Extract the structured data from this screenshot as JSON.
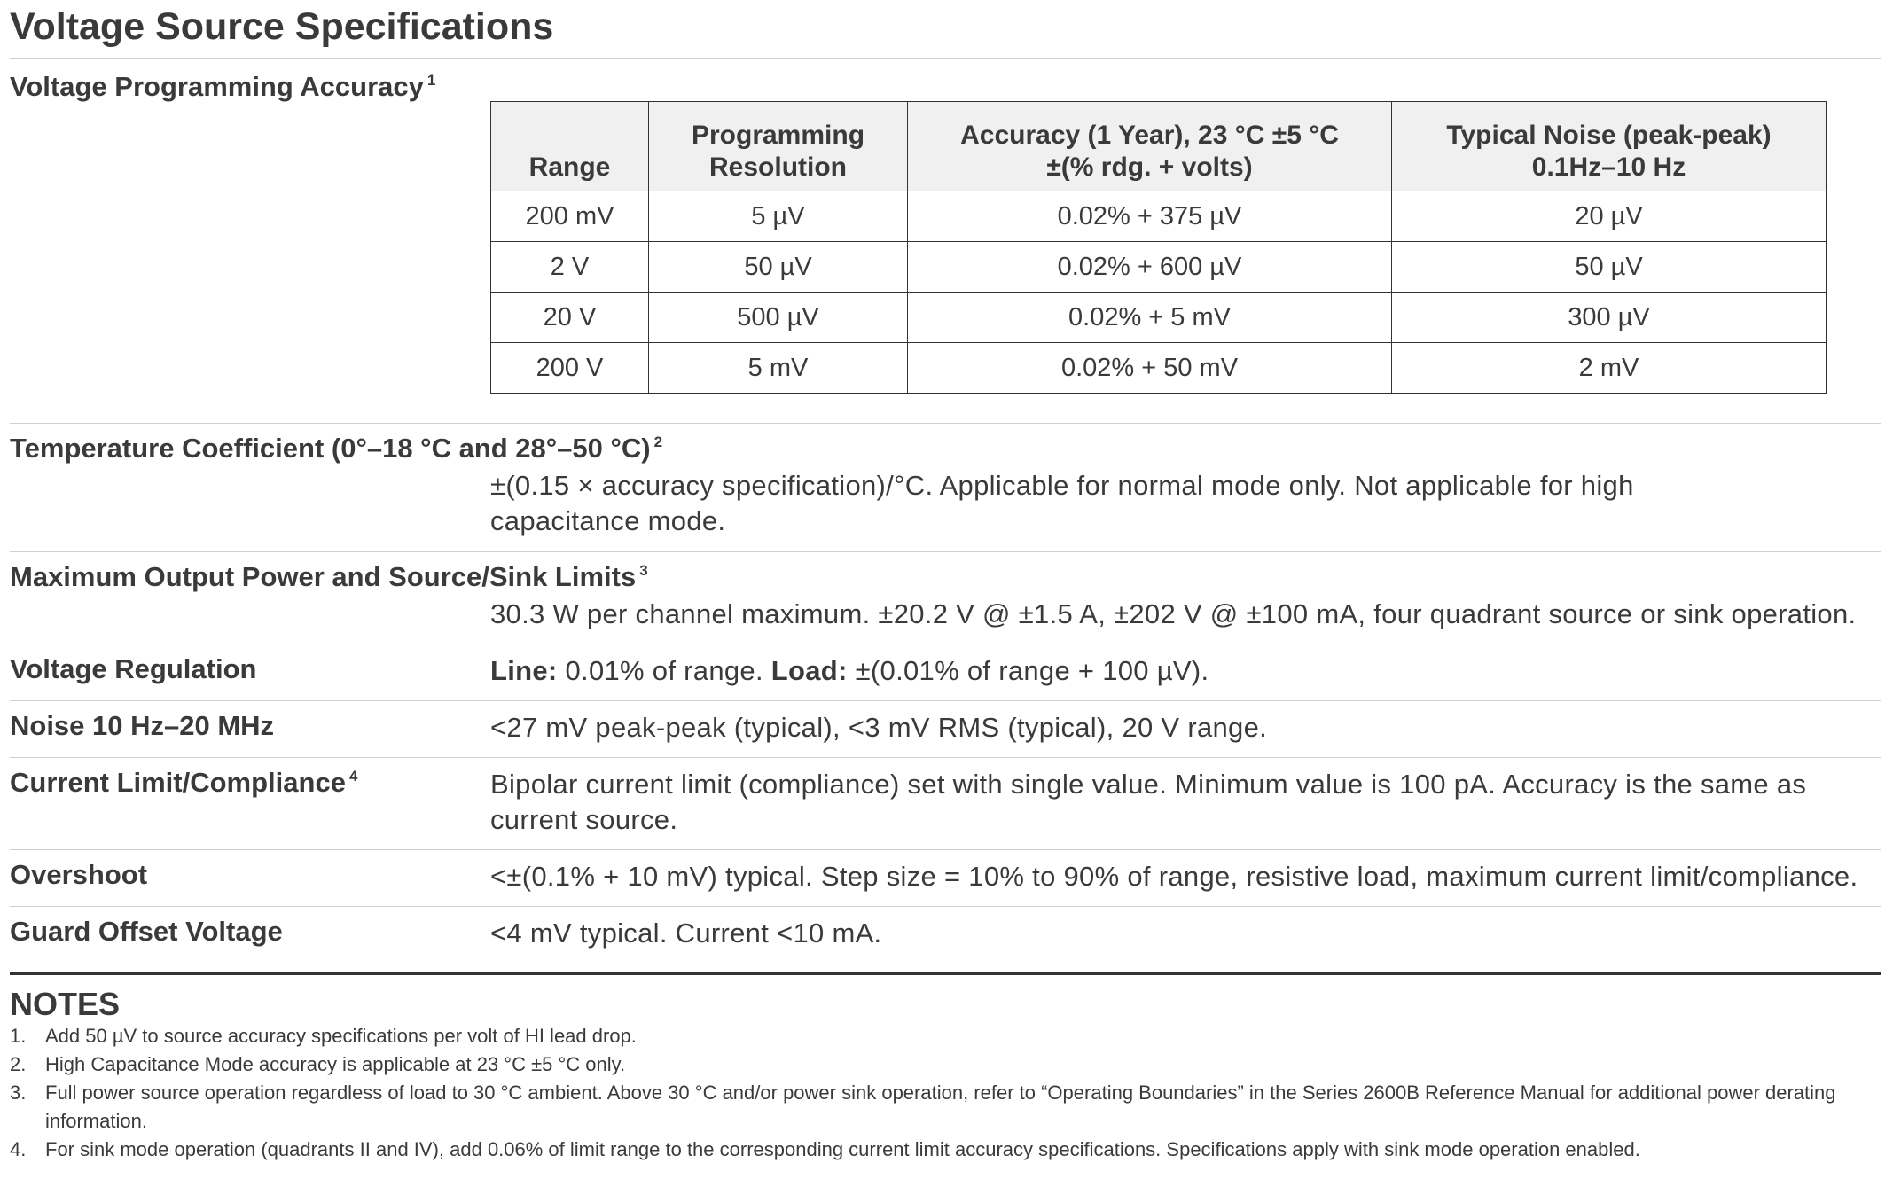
{
  "title": "Voltage Source Specifications",
  "accuracy": {
    "label": "Voltage Programming Accuracy",
    "note_ref": "1",
    "headers": {
      "range": "Range",
      "resolution_line1": "Programming",
      "resolution_line2": "Resolution",
      "accuracy_line1": "Accuracy (1 Year), 23 °C ±5 °C",
      "accuracy_line2": "±(% rdg. + volts)",
      "noise_line1": "Typical Noise (peak-peak)",
      "noise_line2": "0.1Hz–10 Hz"
    },
    "rows": [
      {
        "range": "200 mV",
        "resolution": "5 µV",
        "accuracy": "0.02% + 375 µV",
        "noise": "20 µV"
      },
      {
        "range": "2 V",
        "resolution": "50 µV",
        "accuracy": "0.02% + 600 µV",
        "noise": "50 µV"
      },
      {
        "range": "20 V",
        "resolution": "500 µV",
        "accuracy": "0.02% + 5 mV",
        "noise": "300 µV"
      },
      {
        "range": "200 V",
        "resolution": "5 mV",
        "accuracy": "0.02% + 50 mV",
        "noise": "2 mV"
      }
    ]
  },
  "specs": {
    "temp_coeff": {
      "label": "Temperature Coefficient (0°–18 °C and 28°–50 °C)",
      "note_ref": "2",
      "line1": "±(0.15 × accuracy specification)/°C. Applicable for normal mode only. Not applicable for high",
      "line2": "capacitance mode."
    },
    "max_power": {
      "label": "Maximum Output Power and Source/Sink Limits",
      "note_ref": "3",
      "value": "30.3 W per channel maximum. ±20.2 V @ ±1.5 A, ±202 V @ ±100 mA, four quadrant source or sink operation."
    },
    "regulation": {
      "label": "Voltage Regulation",
      "line_label": "Line:",
      "line_value": "0.01% of range.",
      "load_label": "Load:",
      "load_value": "±(0.01% of range + 100 µV)."
    },
    "noise": {
      "label": "Noise 10 Hz–20 MHz",
      "value": "<27 mV peak-peak (typical), <3 mV RMS (typical), 20 V range."
    },
    "current_limit": {
      "label": "Current Limit/Compliance",
      "note_ref": "4",
      "line1": "Bipolar current limit (compliance) set with single value. Minimum value is 100 pA. Accuracy is the same as",
      "line2": "current source."
    },
    "overshoot": {
      "label": "Overshoot",
      "value": "<±(0.1% + 10 mV) typical. Step size = 10% to 90% of range, resistive load, maximum current limit/compliance."
    },
    "guard": {
      "label": "Guard Offset Voltage",
      "value": "<4 mV typical. Current <10 mA."
    }
  },
  "notes": {
    "title": "NOTES",
    "items": [
      {
        "num": "1.",
        "text": "Add 50 µV to source accuracy specifications per volt of HI lead drop."
      },
      {
        "num": "2.",
        "text": "High Capacitance Mode accuracy is applicable at 23 °C ±5 °C only."
      },
      {
        "num": "3.",
        "text": "Full power source operation regardless of load to 30 °C ambient. Above 30 °C and/or power sink operation, refer to “Operating Boundaries” in the Series 2600B Reference Manual for additional power derating information."
      },
      {
        "num": "4.",
        "text": "For sink mode operation (quadrants II and IV), add 0.06% of limit range to the corresponding current limit accuracy specifications. Specifications apply with sink mode operation enabled."
      }
    ]
  }
}
